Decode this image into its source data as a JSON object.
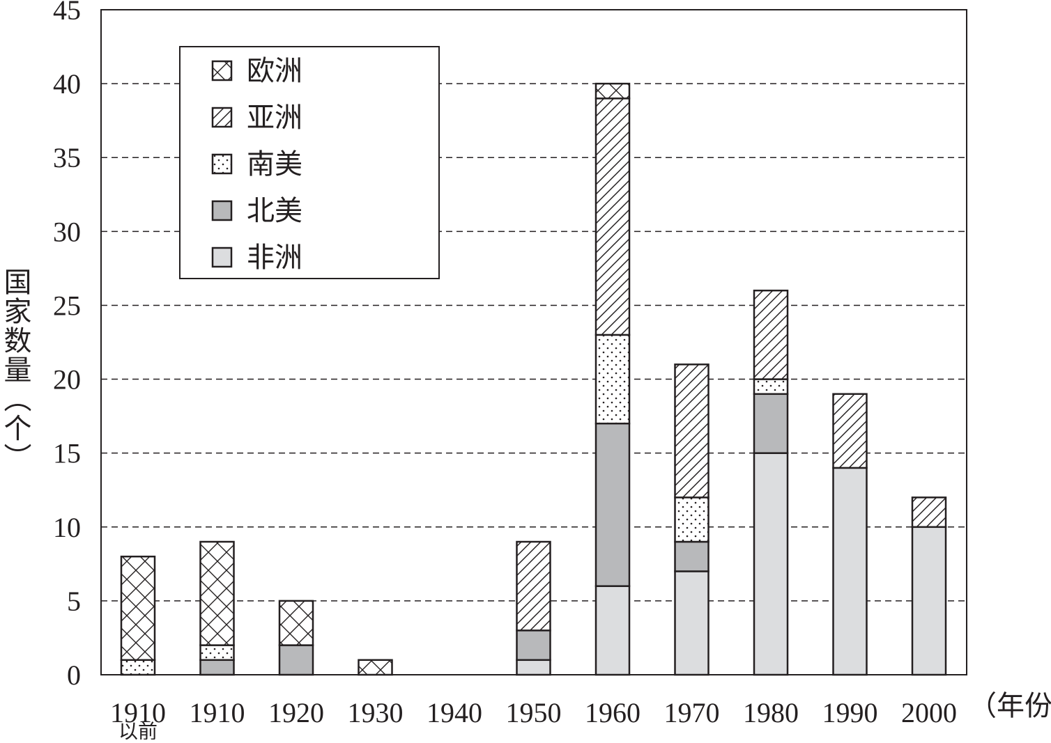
{
  "colors": {
    "ink": "#231f20",
    "north_america_fill": "#b8b9bb",
    "africa_fill": "#dcdddf",
    "background": "#ffffff"
  },
  "chart_data": {
    "type": "bar",
    "stacked": true,
    "categories": [
      "1910",
      "1910",
      "1920",
      "1930",
      "1940",
      "1950",
      "1960",
      "1970",
      "1980",
      "1990",
      "2000"
    ],
    "category_sublabels": [
      "以前",
      "",
      "",
      "",
      "",
      "",
      "",
      "",
      "",
      "",
      ""
    ],
    "series": [
      {
        "name": "非洲",
        "pattern": "light-gray-solid",
        "values": [
          0,
          0,
          0,
          0,
          0,
          1,
          6,
          7,
          15,
          14,
          10
        ]
      },
      {
        "name": "北美",
        "pattern": "dark-gray-solid",
        "values": [
          0,
          1,
          2,
          0,
          0,
          2,
          11,
          2,
          4,
          0,
          0
        ]
      },
      {
        "name": "南美",
        "pattern": "dotted",
        "values": [
          1,
          1,
          0,
          0,
          0,
          0,
          6,
          3,
          1,
          0,
          0
        ]
      },
      {
        "name": "亚洲",
        "pattern": "diagonal-hatch",
        "values": [
          0,
          0,
          0,
          0,
          0,
          6,
          16,
          9,
          6,
          5,
          2
        ]
      },
      {
        "name": "欧洲",
        "pattern": "cross-hatch",
        "values": [
          7,
          7,
          3,
          1,
          0,
          0,
          1,
          0,
          0,
          0,
          0
        ]
      }
    ],
    "legend_order": [
      "欧洲",
      "亚洲",
      "南美",
      "北美",
      "非洲"
    ],
    "legend_position": "top-left",
    "ylim": [
      0,
      45
    ],
    "yticks": [
      0,
      5,
      10,
      15,
      20,
      25,
      30,
      35,
      40,
      45
    ],
    "ylabel": "国家数量（个）",
    "xlabel": "（年份）",
    "grid": "horizontal-dashed"
  }
}
